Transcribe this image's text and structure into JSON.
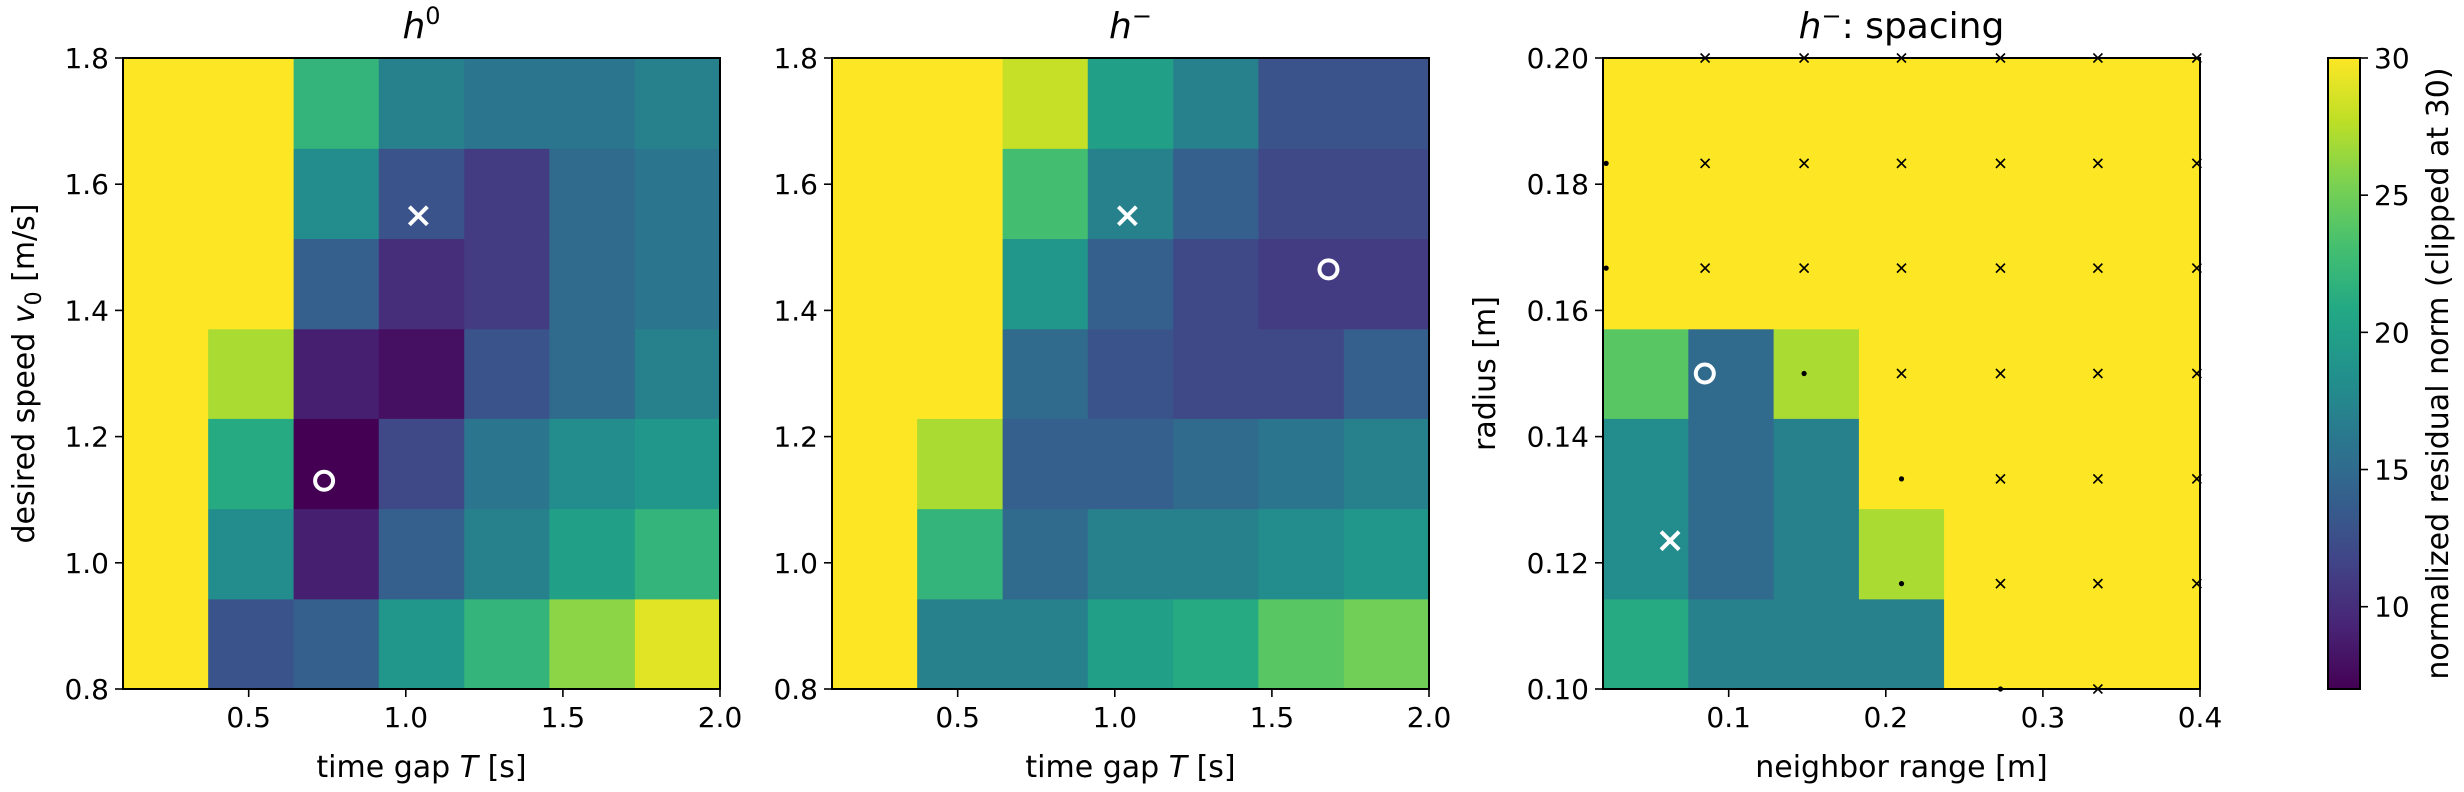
{
  "colors": {
    "colormap": "viridis",
    "marker": "#ffffff",
    "dot_marker": "#000000"
  },
  "chart_data": [
    {
      "type": "heatmap",
      "title": "h⁰",
      "title_base": "h",
      "title_sup": "0",
      "xlabel": "time gap T [s]",
      "xlabel_parts": [
        "time gap ",
        "T",
        " [s]"
      ],
      "ylabel": "desired speed v₀ [m/s]",
      "ylabel_parts": [
        "desired speed ",
        "v",
        "0",
        " [m/s]"
      ],
      "xlim": [
        0.1,
        2.0
      ],
      "ylim": [
        0.8,
        1.8
      ],
      "xticks": [
        0.5,
        1.0,
        1.5,
        2.0
      ],
      "xtick_labels": [
        "0.5",
        "1.0",
        "1.5",
        "2.0"
      ],
      "yticks": [
        0.8,
        1.0,
        1.2,
        1.4,
        1.6,
        1.8
      ],
      "ytick_labels": [
        "0.8",
        "1.0",
        "1.2",
        "1.4",
        "1.6",
        "1.8"
      ],
      "x_edges": [
        0.1,
        0.371,
        0.643,
        0.914,
        1.186,
        1.457,
        1.729,
        2.0
      ],
      "y_edges": [
        0.8,
        0.943,
        1.086,
        1.229,
        1.371,
        1.514,
        1.657,
        1.8
      ],
      "values": [
        [
          30,
          13,
          14,
          19,
          22,
          26,
          29
        ],
        [
          30,
          18,
          9,
          14,
          17,
          20,
          22
        ],
        [
          30,
          21,
          7,
          12,
          16,
          18,
          19
        ],
        [
          30,
          27,
          9,
          8,
          13,
          15,
          17
        ],
        [
          30,
          30,
          14,
          10,
          11,
          15,
          16
        ],
        [
          30,
          30,
          18,
          13,
          11,
          15,
          16
        ],
        [
          30,
          30,
          22,
          17,
          16,
          16,
          17
        ]
      ],
      "markers": [
        {
          "kind": "circle",
          "x": 0.74,
          "y": 1.13
        },
        {
          "kind": "cross",
          "x": 1.04,
          "y": 1.55
        }
      ]
    },
    {
      "type": "heatmap",
      "title": "h⁻",
      "title_base": "h",
      "title_sup": "−",
      "xlabel": "time gap T [s]",
      "xlabel_parts": [
        "time gap ",
        "T",
        " [s]"
      ],
      "ylabel": "",
      "xlim": [
        0.1,
        2.0
      ],
      "ylim": [
        0.8,
        1.8
      ],
      "xticks": [
        0.5,
        1.0,
        1.5,
        2.0
      ],
      "xtick_labels": [
        "0.5",
        "1.0",
        "1.5",
        "2.0"
      ],
      "yticks": [
        0.8,
        1.0,
        1.2,
        1.4,
        1.6,
        1.8
      ],
      "ytick_labels": [
        "0.8",
        "1.0",
        "1.2",
        "1.4",
        "1.6",
        "1.8"
      ],
      "x_edges": [
        0.1,
        0.371,
        0.643,
        0.914,
        1.186,
        1.457,
        1.729,
        2.0
      ],
      "y_edges": [
        0.8,
        0.943,
        1.086,
        1.229,
        1.371,
        1.514,
        1.657,
        1.8
      ],
      "values": [
        [
          30,
          17,
          17,
          20,
          21,
          24,
          25
        ],
        [
          30,
          22,
          15,
          17,
          17,
          18,
          19
        ],
        [
          30,
          27,
          14,
          14,
          15,
          16,
          17
        ],
        [
          30,
          30,
          15,
          13,
          12,
          12,
          14
        ],
        [
          30,
          30,
          19,
          14,
          12,
          11,
          11
        ],
        [
          30,
          30,
          23,
          17,
          14,
          12,
          12
        ],
        [
          30,
          30,
          28,
          20,
          17,
          13,
          13
        ]
      ],
      "markers": [
        {
          "kind": "cross",
          "x": 1.04,
          "y": 1.55
        },
        {
          "kind": "circle",
          "x": 1.68,
          "y": 1.465
        }
      ]
    },
    {
      "type": "heatmap",
      "title": "h⁻: spacing",
      "title_base": "h",
      "title_sup": "−",
      "title_suffix": ": spacing",
      "xlabel": "neighbor range [m]",
      "ylabel": "radius [m]",
      "xlim": [
        0.02,
        0.4
      ],
      "ylim": [
        0.1,
        0.2
      ],
      "xticks": [
        0.1,
        0.2,
        0.3,
        0.4
      ],
      "xtick_labels": [
        "0.1",
        "0.2",
        "0.3",
        "0.4"
      ],
      "yticks": [
        0.1,
        0.12,
        0.14,
        0.16,
        0.18,
        0.2
      ],
      "ytick_labels": [
        "0.10",
        "0.12",
        "0.14",
        "0.16",
        "0.18",
        "0.20"
      ],
      "x_edges": [
        0.02,
        0.0743,
        0.1286,
        0.1829,
        0.2371,
        0.2914,
        0.3457,
        0.4
      ],
      "y_edges": [
        0.1,
        0.1143,
        0.1286,
        0.1429,
        0.1571,
        0.1714,
        0.1857,
        0.2
      ],
      "values": [
        [
          21,
          17,
          17,
          17,
          30,
          30,
          30
        ],
        [
          18,
          15,
          17,
          27,
          30,
          30,
          30
        ],
        [
          18,
          15,
          17,
          30,
          30,
          30,
          30
        ],
        [
          24,
          15,
          27,
          30,
          30,
          30,
          30
        ],
        [
          30,
          30,
          30,
          30,
          30,
          30,
          30
        ],
        [
          30,
          30,
          30,
          30,
          30,
          30,
          30
        ],
        [
          30,
          30,
          30,
          30,
          30,
          30,
          30
        ]
      ],
      "markers": [
        {
          "kind": "circle",
          "x": 0.0848,
          "y": 0.15
        },
        {
          "kind": "cross",
          "x": 0.0627,
          "y": 0.1235
        }
      ],
      "small_x_markers": [
        [
          0.085,
          0.2
        ],
        [
          0.148,
          0.2
        ],
        [
          0.21,
          0.2
        ],
        [
          0.273,
          0.2
        ],
        [
          0.335,
          0.2
        ],
        [
          0.398,
          0.2
        ],
        [
          0.085,
          0.1833
        ],
        [
          0.148,
          0.1833
        ],
        [
          0.21,
          0.1833
        ],
        [
          0.273,
          0.1833
        ],
        [
          0.335,
          0.1833
        ],
        [
          0.398,
          0.1833
        ],
        [
          0.085,
          0.1667
        ],
        [
          0.148,
          0.1667
        ],
        [
          0.21,
          0.1667
        ],
        [
          0.273,
          0.1667
        ],
        [
          0.335,
          0.1667
        ],
        [
          0.398,
          0.1667
        ],
        [
          0.21,
          0.15
        ],
        [
          0.273,
          0.15
        ],
        [
          0.335,
          0.15
        ],
        [
          0.398,
          0.15
        ],
        [
          0.273,
          0.1333
        ],
        [
          0.335,
          0.1333
        ],
        [
          0.398,
          0.1333
        ],
        [
          0.273,
          0.1167
        ],
        [
          0.335,
          0.1167
        ],
        [
          0.398,
          0.1167
        ],
        [
          0.335,
          0.1
        ]
      ],
      "small_dot_markers": [
        [
          0.022,
          0.1833
        ],
        [
          0.022,
          0.1667
        ],
        [
          0.148,
          0.15
        ],
        [
          0.21,
          0.1333
        ],
        [
          0.21,
          0.1167
        ],
        [
          0.273,
          0.1
        ]
      ]
    }
  ],
  "colorbar": {
    "label": "normalized residual norm (clipped at 30)",
    "min": 7,
    "max": 30,
    "ticks": [
      10,
      15,
      20,
      25,
      30
    ],
    "tick_labels": [
      "10",
      "15",
      "20",
      "25",
      "30"
    ]
  }
}
